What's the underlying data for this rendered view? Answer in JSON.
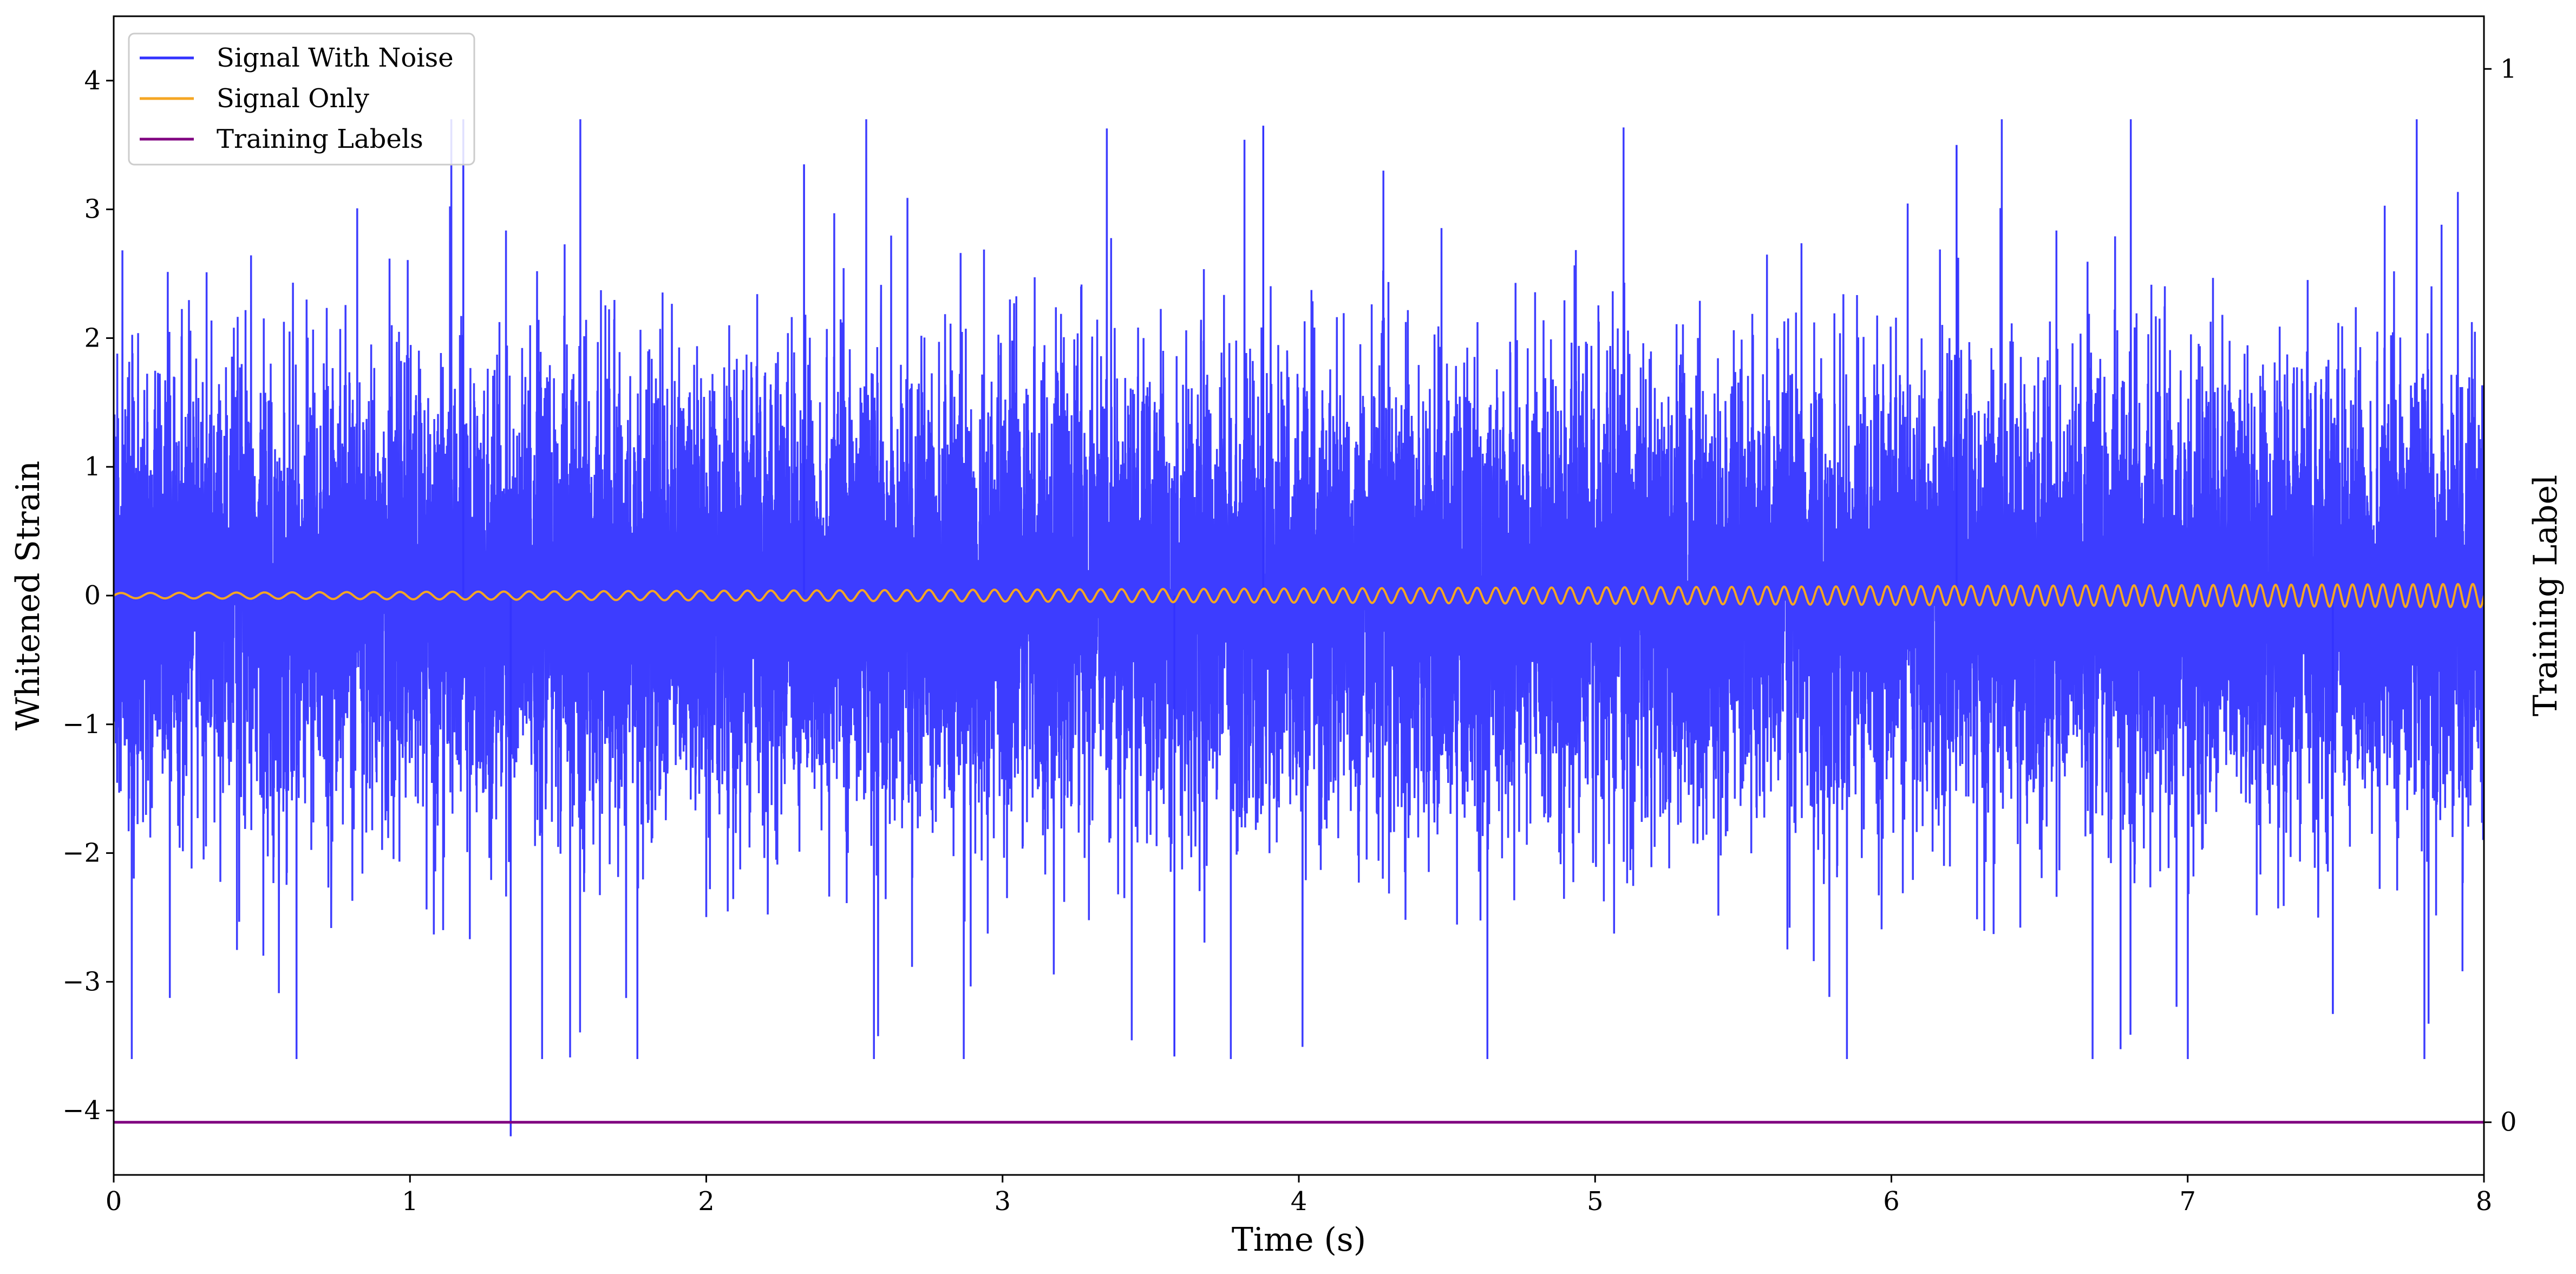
{
  "chart_data": {
    "type": "line",
    "xlabel": "Time (s)",
    "ylabel": "Whitened Strain",
    "y2label": "Training Label",
    "xlim": [
      0,
      8
    ],
    "ylim": [
      -4.5,
      4.5
    ],
    "y2lim": [
      -0.05,
      1.05
    ],
    "x_ticks": [
      "0",
      "1",
      "2",
      "3",
      "4",
      "5",
      "6",
      "7",
      "8"
    ],
    "y_ticks": [
      "−4",
      "−3",
      "−2",
      "−1",
      "0",
      "1",
      "2",
      "3",
      "4"
    ],
    "y2_ticks": [
      "0",
      "1"
    ],
    "grid": false,
    "legend": {
      "position": "top-left",
      "entries": [
        "Signal With Noise",
        "Signal Only",
        "Training Labels"
      ]
    },
    "series": [
      {
        "name": "Signal With Noise",
        "color": "#3333ff",
        "description_values": "dense noise, roughly within [-3.6, 3.7], extreme min -4.2 near t=1.34, max 3.7 near t=1.18 and t=3.88",
        "envelope_max": [
          3.0,
          3.4,
          3.3,
          3.3,
          3.6,
          3.0,
          3.5,
          3.2,
          2.4
        ],
        "envelope_min": [
          -2.9,
          -4.2,
          -3.3,
          -3.4,
          -3.6,
          -3.3,
          -3.4,
          -3.2,
          -2.5
        ]
      },
      {
        "name": "Signal Only",
        "color": "#f5a623",
        "chirp": {
          "amp_start": 0.02,
          "amp_end": 0.09,
          "freq_start": 10,
          "freq_end": 20
        }
      },
      {
        "name": "Training Labels",
        "color": "#800080",
        "axis": "right",
        "x": [
          0,
          8
        ],
        "values": [
          0,
          0
        ]
      }
    ]
  }
}
